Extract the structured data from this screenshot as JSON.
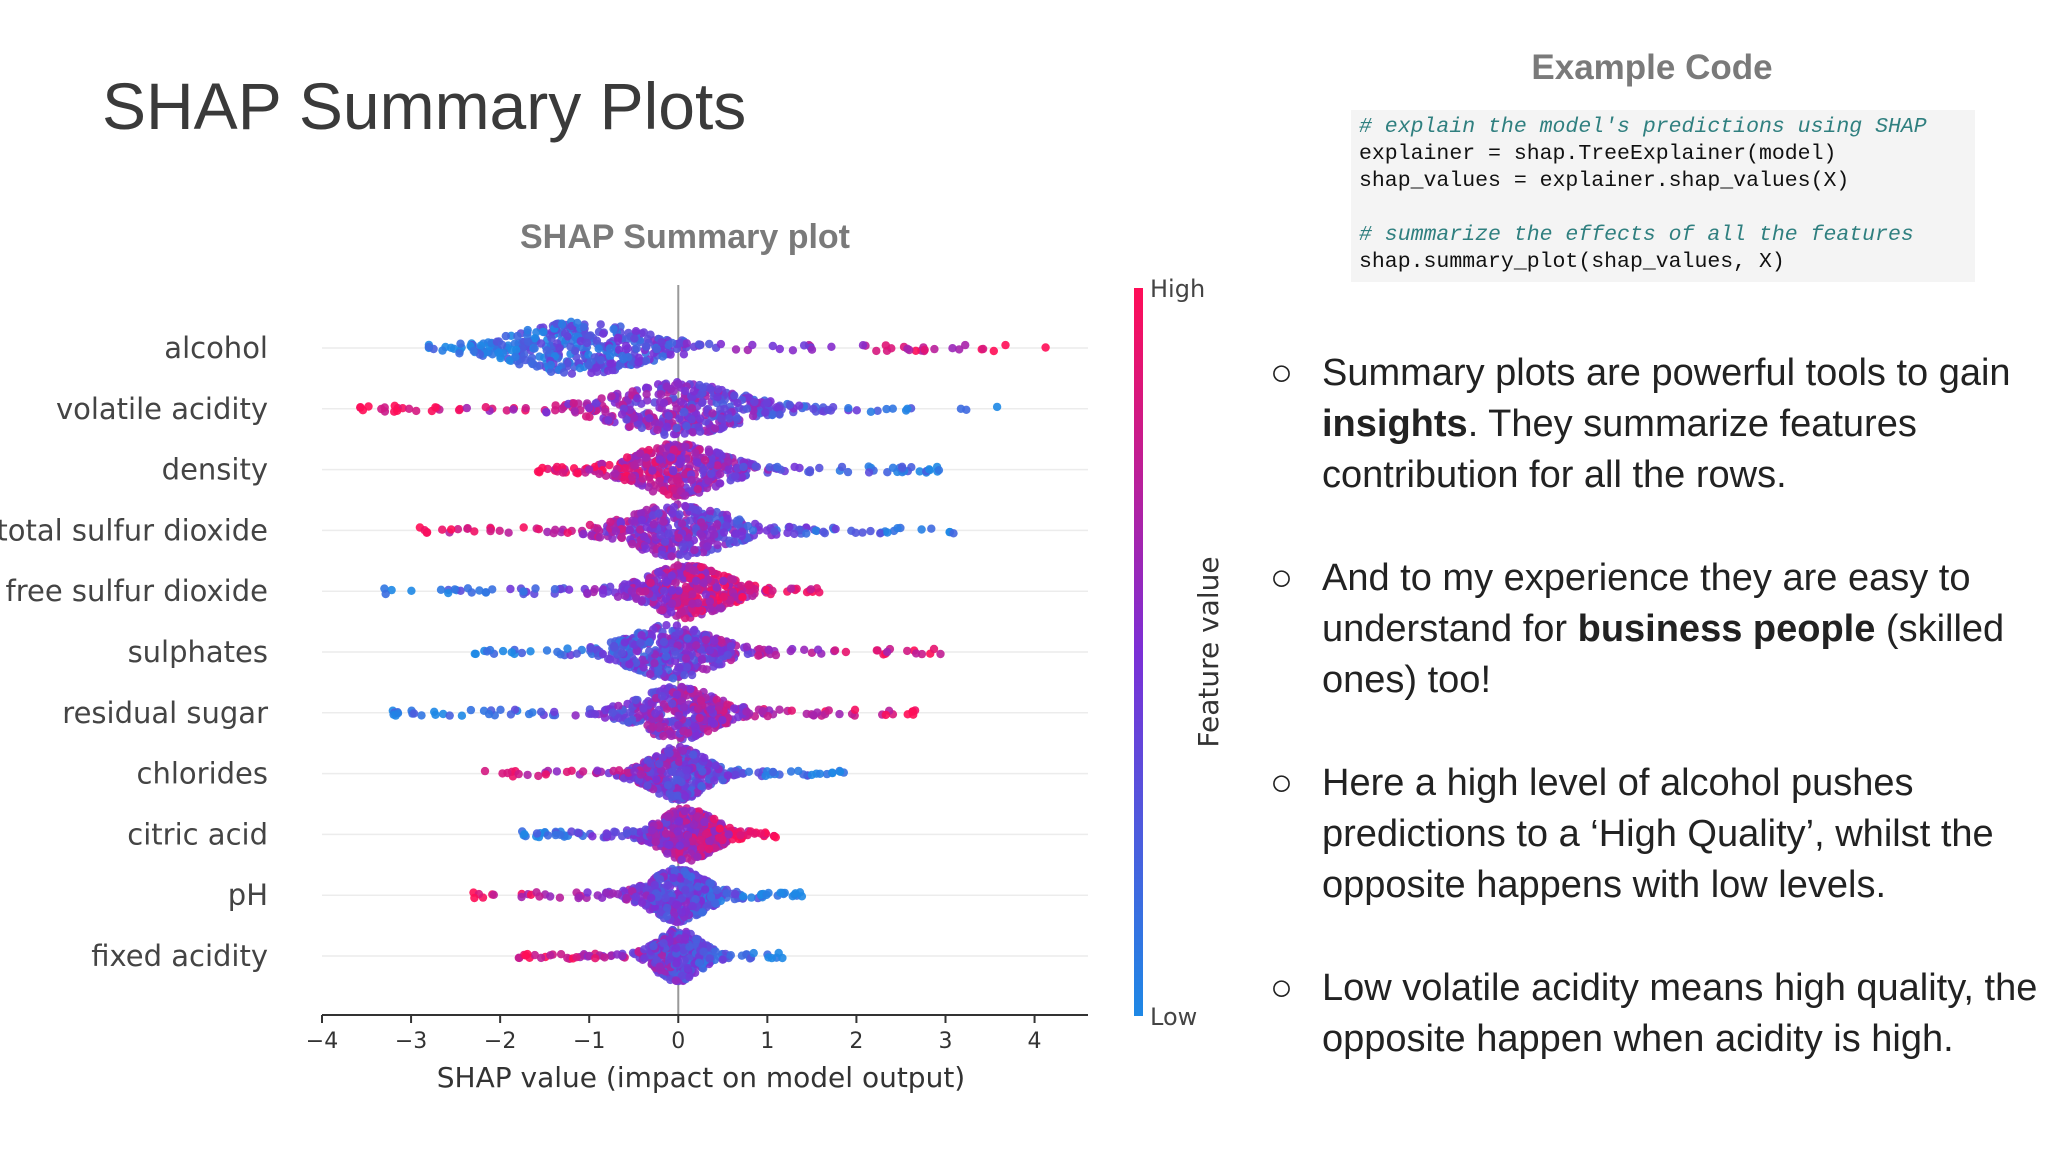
{
  "slide": {
    "title": "SHAP Summary Plots",
    "plot_heading": "SHAP Summary plot",
    "code_heading": "Example Code"
  },
  "code_lines": [
    {
      "text": "# explain the model's predictions using SHAP",
      "kind": "comment"
    },
    {
      "text": "explainer = shap.TreeExplainer(model)",
      "kind": "code"
    },
    {
      "text": "shap_values = explainer.shap_values(X)",
      "kind": "code"
    },
    {
      "text": "",
      "kind": "blank"
    },
    {
      "text": "# summarize the effects of all the features",
      "kind": "comment"
    },
    {
      "text": "shap.summary_plot(shap_values, X)",
      "kind": "code"
    }
  ],
  "bullets": [
    {
      "marker": "○",
      "parts": [
        {
          "text": "Summary plots are powerful tools to gain ",
          "bold": false
        },
        {
          "text": "insights",
          "bold": true
        },
        {
          "text": ". They summarize features contribution for all the rows.",
          "bold": false
        }
      ]
    },
    {
      "marker": "○",
      "parts": [
        {
          "text": "And to my experience they are easy to understand for ",
          "bold": false
        },
        {
          "text": "business people",
          "bold": true
        },
        {
          "text": " (skilled ones) too!",
          "bold": false
        }
      ]
    },
    {
      "marker": "○",
      "parts": [
        {
          "text": "Here a high level of alcohol pushes predictions to a ‘High Quality’, whilst the opposite happens with low levels.",
          "bold": false
        }
      ]
    },
    {
      "marker": "○",
      "parts": [
        {
          "text": "Low volatile acidity means high quality, the opposite happen when acidity is high.",
          "bold": false
        }
      ]
    }
  ],
  "chart_data": {
    "type": "scatter",
    "subtype": "beeswarm",
    "title": "SHAP Summary plot",
    "xlabel": "SHAP value (impact on model output)",
    "xlim": [
      -4,
      4.6
    ],
    "xticks": [
      -4,
      -3,
      -2,
      -1,
      0,
      1,
      2,
      3,
      4
    ],
    "xtick_labels": [
      "−4",
      "−3",
      "−2",
      "−1",
      "0",
      "1",
      "2",
      "3",
      "4"
    ],
    "colorbar": {
      "label": "Feature value",
      "high": "High",
      "low": "Low",
      "high_color": "#ff0d57",
      "mid_color": "#7b2fd6",
      "low_color": "#1e88e5"
    },
    "zero_line": true,
    "features": [
      {
        "name": "alcohol",
        "min": -2.8,
        "max": 4.2,
        "center": -1.1,
        "low_side": "left",
        "spread": 1.2
      },
      {
        "name": "volatile acidity",
        "min": -3.6,
        "max": 3.6,
        "center": 0.0,
        "low_side": "right",
        "spread": 1.1
      },
      {
        "name": "density",
        "min": -1.6,
        "max": 3.0,
        "center": 0.0,
        "low_side": "right",
        "spread": 0.8
      },
      {
        "name": "total sulfur dioxide",
        "min": -3.0,
        "max": 3.1,
        "center": 0.0,
        "low_side": "right",
        "spread": 0.9
      },
      {
        "name": "free sulfur dioxide",
        "min": -3.3,
        "max": 1.6,
        "center": 0.1,
        "low_side": "left",
        "spread": 0.7
      },
      {
        "name": "sulphates",
        "min": -2.3,
        "max": 3.0,
        "center": -0.1,
        "low_side": "left",
        "spread": 0.8
      },
      {
        "name": "residual sugar",
        "min": -3.3,
        "max": 2.7,
        "center": 0.0,
        "low_side": "left",
        "spread": 0.7
      },
      {
        "name": "chlorides",
        "min": -2.4,
        "max": 2.0,
        "center": 0.0,
        "low_side": "right",
        "spread": 0.5
      },
      {
        "name": "citric acid",
        "min": -1.8,
        "max": 1.1,
        "center": 0.1,
        "low_side": "left",
        "spread": 0.5
      },
      {
        "name": "pH",
        "min": -2.3,
        "max": 1.4,
        "center": 0.0,
        "low_side": "right",
        "spread": 0.5
      },
      {
        "name": "fixed acidity",
        "min": -1.8,
        "max": 1.2,
        "center": 0.0,
        "low_side": "right",
        "spread": 0.4
      }
    ]
  }
}
